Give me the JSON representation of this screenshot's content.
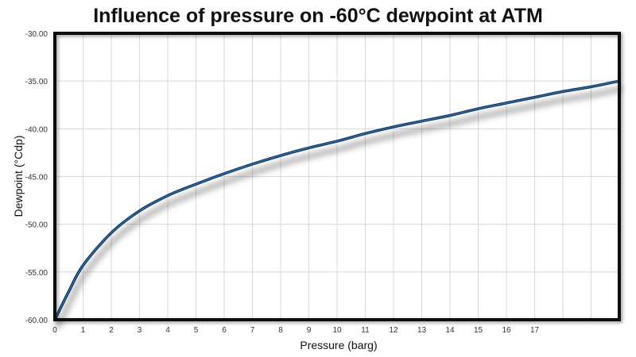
{
  "chart_data": {
    "type": "line",
    "title": "Influence of pressure on -60°C dewpoint at ATM",
    "xlabel": "Pressure (barg)",
    "ylabel": "Dewpoint (°Cdp)",
    "xlim": [
      0,
      20
    ],
    "ylim": [
      -60,
      -30
    ],
    "x_ticks": [
      "0",
      "1",
      "2",
      "3",
      "4",
      "5",
      "6",
      "7",
      "8",
      "9",
      "10",
      "11",
      "12",
      "13",
      "14",
      "15",
      "16",
      "17"
    ],
    "y_ticks": [
      "-30.00",
      "-35.00",
      "-40.00",
      "-45.00",
      "-50.00",
      "-55.00",
      "-60.00"
    ],
    "grid": true,
    "series": [
      {
        "color": "#2f6fb0",
        "x": [
          0,
          0.5,
          1,
          2,
          3,
          4,
          5,
          6,
          7,
          8,
          9,
          10,
          11,
          12,
          13,
          14,
          15,
          16,
          17,
          18,
          19,
          20
        ],
        "y": [
          -60,
          -57.0,
          -54.3,
          -50.9,
          -48.6,
          -47.0,
          -45.8,
          -44.7,
          -43.7,
          -42.8,
          -42.0,
          -41.3,
          -40.5,
          -39.8,
          -39.2,
          -38.6,
          -37.9,
          -37.3,
          -36.7,
          -36.1,
          -35.6,
          -35.0
        ]
      }
    ]
  }
}
